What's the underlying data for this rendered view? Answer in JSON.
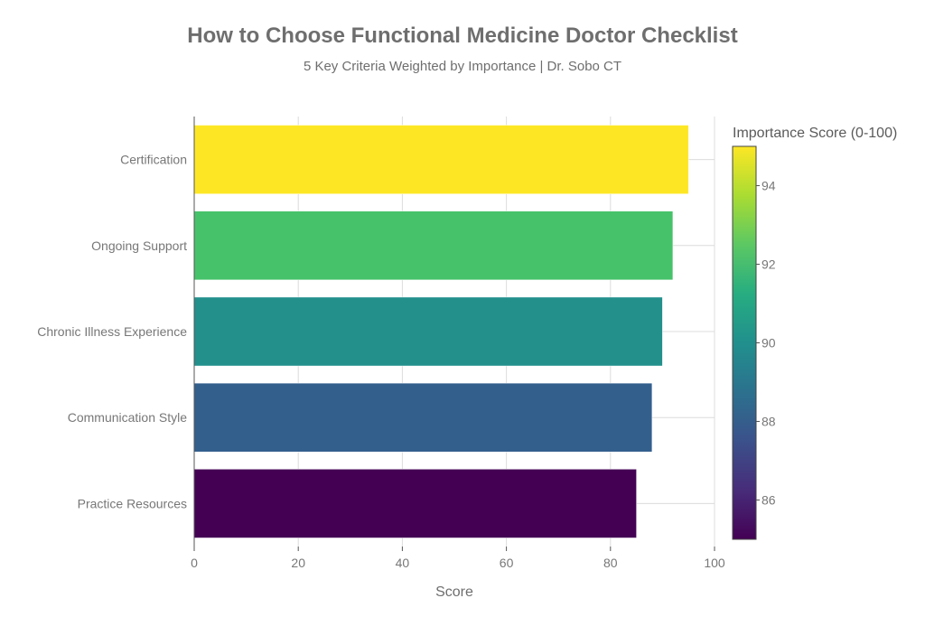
{
  "chart_data": {
    "type": "bar",
    "orientation": "horizontal",
    "title": "How to Choose Functional Medicine Doctor Checklist",
    "subtitle": "5 Key Criteria Weighted by Importance | Dr. Sobo CT",
    "xlabel": "Score",
    "ylabel": "",
    "xlim": [
      0,
      100
    ],
    "xticks": [
      0,
      20,
      40,
      60,
      80,
      100
    ],
    "grid": true,
    "categories": [
      "Certification",
      "Ongoing Support",
      "Chronic Illness Experience",
      "Communication Style",
      "Practice Resources"
    ],
    "values": [
      95,
      92,
      90,
      88,
      85
    ],
    "colors": [
      "#fde725",
      "#46c26b",
      "#23908c",
      "#335f8d",
      "#440154"
    ],
    "colorbar": {
      "title": "Importance Score (0-100)",
      "range": [
        85,
        95
      ],
      "ticks": [
        94,
        92,
        90,
        88,
        86
      ],
      "colorscale": "Viridis",
      "stops": [
        "#440154",
        "#472c7a",
        "#3b518b",
        "#2c718e",
        "#21908d",
        "#27ad81",
        "#5cc863",
        "#aadc32",
        "#fde725"
      ]
    }
  }
}
